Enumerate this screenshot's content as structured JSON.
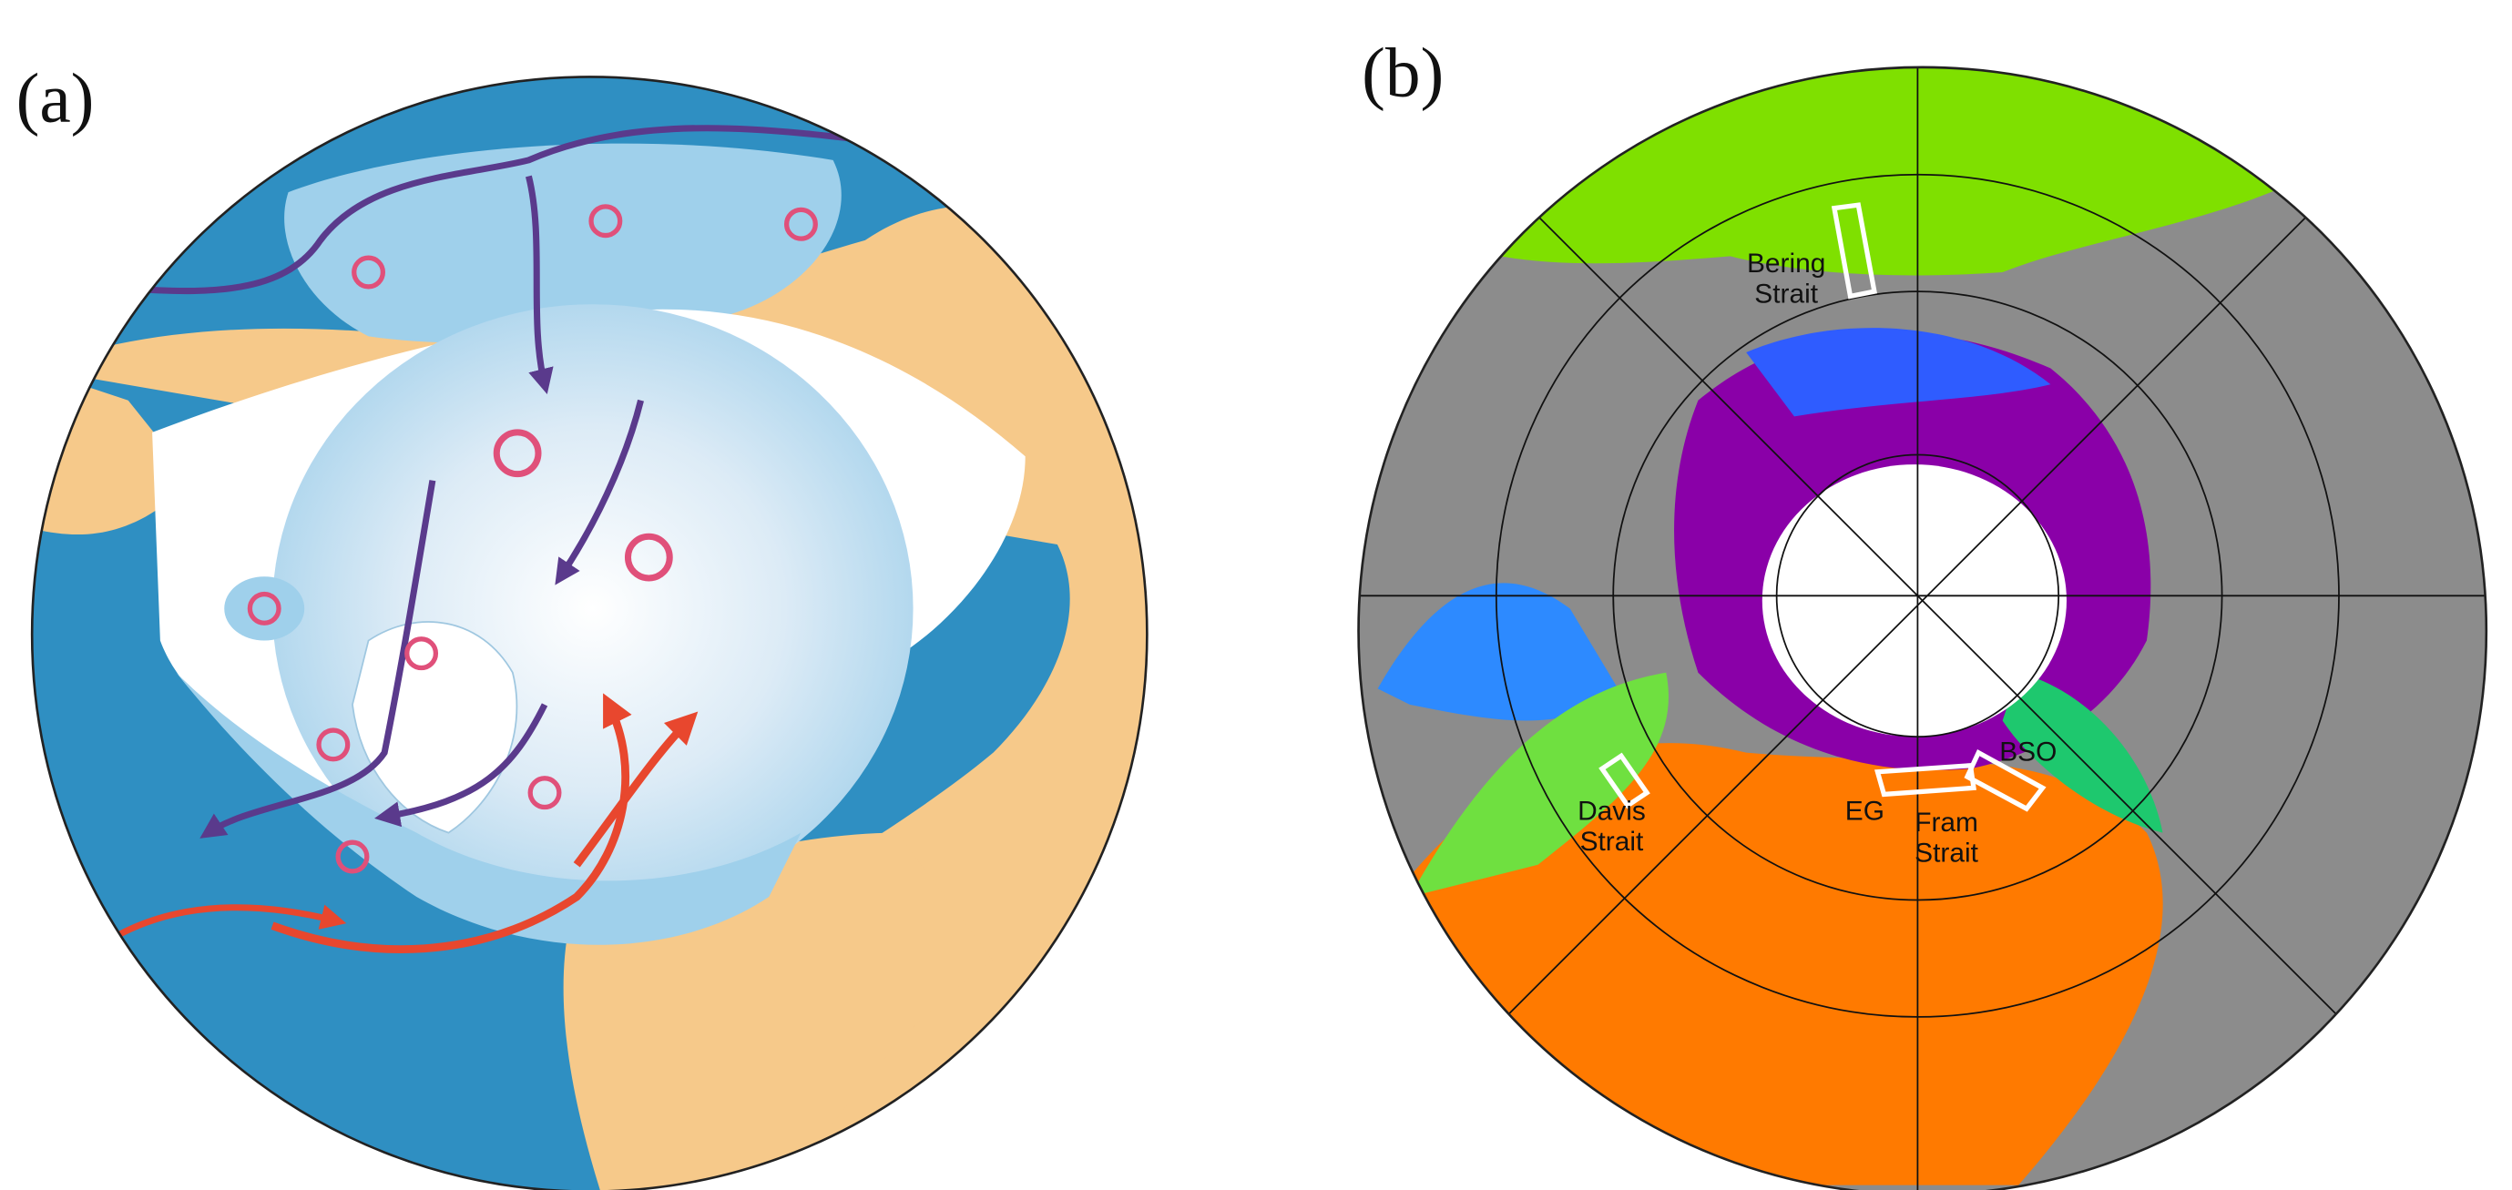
{
  "panel_a": {
    "label": "(a)"
  },
  "panel_b": {
    "label": "(b)",
    "annotations": {
      "bering": {
        "lines": [
          "Bering",
          "Strait"
        ]
      },
      "davis": {
        "lines": [
          "Davis",
          "Strait"
        ]
      },
      "eg": {
        "lines": [
          "EG"
        ]
      },
      "fram": {
        "lines": [
          "Fram",
          "Strait"
        ]
      },
      "bso": {
        "lines": [
          "BSO"
        ]
      }
    }
  }
}
